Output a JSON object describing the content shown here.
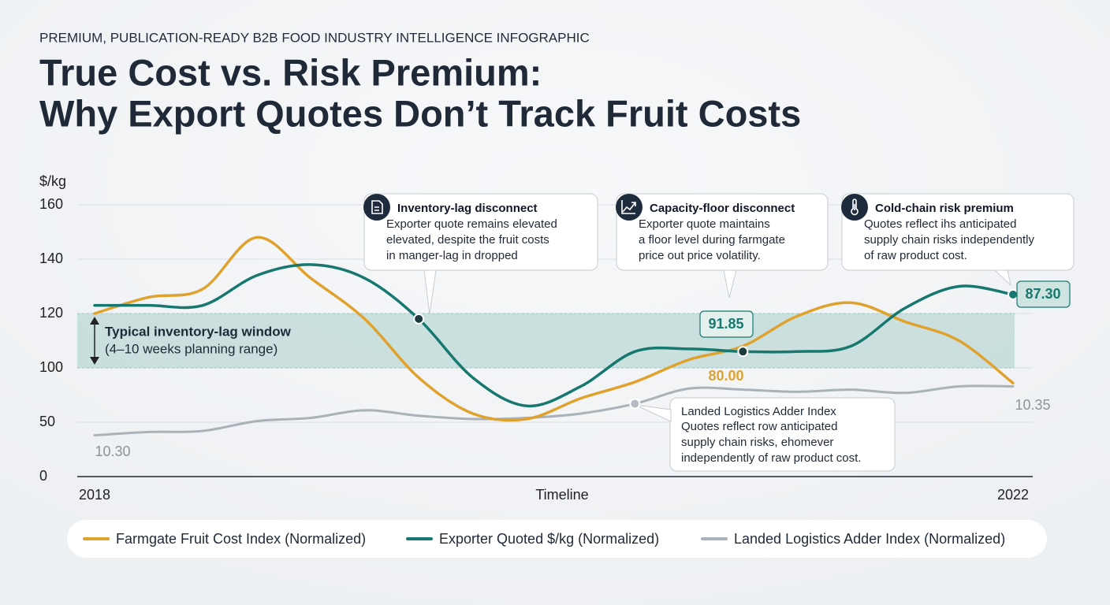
{
  "header": {
    "kicker": "PREMIUM, PUBLICATION-READY B2B FOOD INDUSTRY INTELLIGENCE INFOGRAPHIC",
    "title_lines": [
      "True Cost vs. Risk Premium:",
      "Why Export Quotes Don’t Track Fruit Costs"
    ]
  },
  "chart_data": {
    "type": "line",
    "y_label": "$/kg",
    "x_label": "Timeline",
    "categories": [
      "2018",
      null,
      null,
      null,
      null,
      null,
      null,
      null,
      null,
      null,
      null,
      null,
      null,
      null,
      null,
      null,
      null,
      "2022"
    ],
    "series": [
      {
        "name": "Farmgate Fruit Cost Index (Normalized)",
        "color": "#e0a22e",
        "values": [
          120,
          126,
          129,
          148,
          133,
          118,
          91,
          58,
          53,
          72,
          87,
          103,
          108,
          119,
          124,
          117,
          110,
          86
        ]
      },
      {
        "name": "Exporter Quoted $/kg (Normalized)",
        "color": "#16786f",
        "values": [
          123,
          123,
          123,
          134,
          138,
          133,
          118,
          91,
          65,
          83,
          106,
          107,
          106,
          106,
          108,
          122,
          130,
          127
        ]
      },
      {
        "name": "Landed Logistics Adder Index (Normalized)",
        "color": "#a9b2b8",
        "values": [
          38,
          41,
          42,
          51,
          54,
          61,
          56,
          53,
          54,
          58,
          67,
          81,
          80,
          78,
          80,
          77,
          83,
          83
        ]
      }
    ],
    "ylim": [
      0,
      160
    ],
    "yticks": [
      0,
      50,
      100,
      120,
      140,
      160
    ],
    "grid": true,
    "band": {
      "range": [
        100,
        120
      ],
      "label": "Typical inventory-lag window",
      "sublabel": "(4–10 weeks planning range)"
    },
    "point_labels": [
      "91.85",
      "80.00",
      "87.30",
      "10.35",
      "10.30"
    ],
    "callouts": [
      {
        "title": "Inventory-lag disconnect",
        "lines": [
          "Exporter quote remains elevated",
          "elevated, despite the fruit costs",
          "in manger-lag in dropped"
        ]
      },
      {
        "title": "Capacity-floor disconnect",
        "lines": [
          "Exporter quote maintains",
          "a floor level during farmgate",
          "price out price volatility."
        ]
      },
      {
        "title": "Cold-chain risk premium",
        "lines": [
          "Quotes reflect ihs anticipated",
          "supply chain risks independently",
          "of raw product cost."
        ]
      },
      {
        "title": "Landed Logistics Adder Index",
        "lines": [
          "Quotes reflect row anticipated",
          "supply chain risks, ehomever",
          "independently of raw product cost."
        ]
      }
    ]
  }
}
